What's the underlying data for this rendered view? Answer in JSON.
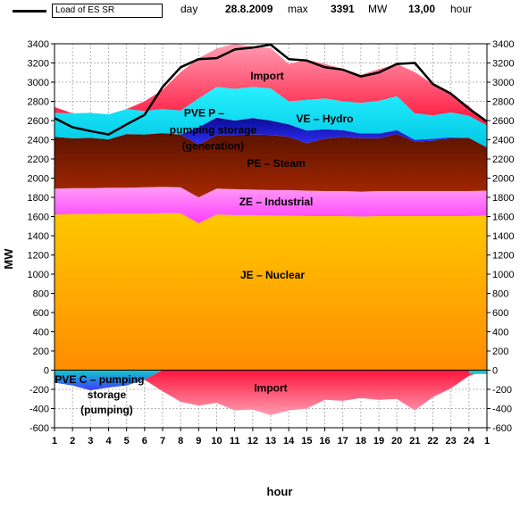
{
  "header": {
    "legend_label": "Load of ES SR",
    "day_label": "day",
    "date": "28.8.2009",
    "max_label": "max",
    "max_value": "3391",
    "unit": "MW",
    "time_value": "13,00",
    "time_label": "hour"
  },
  "chart_data": {
    "type": "area",
    "stacked": true,
    "xlabel": "hour",
    "ylabel": "MW",
    "ylim": [
      -600,
      3400
    ],
    "yticks": [
      -600,
      -400,
      -200,
      0,
      200,
      400,
      600,
      800,
      1000,
      1200,
      1400,
      1600,
      1800,
      2000,
      2200,
      2400,
      2600,
      2800,
      3000,
      3200,
      3400
    ],
    "ytick_labels": [
      "-600",
      "-400",
      "-200",
      "0",
      "200",
      "400",
      "600",
      "800",
      "1000",
      "1200",
      "1400",
      "1600",
      "1800",
      "2000",
      "2200",
      "2400",
      "2600",
      "2800",
      "3000",
      "3200",
      "3400"
    ],
    "x_tick_labels": [
      "1",
      "2",
      "3",
      "4",
      "5",
      "6",
      "7",
      "8",
      "9",
      "10",
      "11",
      "12",
      "13",
      "14",
      "15",
      "16",
      "17",
      "18",
      "19",
      "20",
      "21",
      "22",
      "23",
      "24",
      "1"
    ],
    "grid": true,
    "series": [
      {
        "name": "JE – Nuclear",
        "color": "#ffb400",
        "values": [
          1620,
          1625,
          1625,
          1630,
          1630,
          1630,
          1635,
          1635,
          1530,
          1620,
          1615,
          1615,
          1610,
          1610,
          1605,
          1605,
          1605,
          1600,
          1605,
          1605,
          1605,
          1605,
          1605,
          1605,
          1610
        ]
      },
      {
        "name": "ZE – Industrial",
        "color": "#ff66ff",
        "values": [
          270,
          270,
          270,
          270,
          270,
          275,
          275,
          270,
          270,
          270,
          270,
          265,
          265,
          265,
          265,
          260,
          260,
          260,
          260,
          260,
          260,
          260,
          260,
          260,
          260
        ]
      },
      {
        "name": "PE – Steam",
        "color": "#8b1a00",
        "values": [
          540,
          520,
          525,
          505,
          560,
          550,
          560,
          550,
          550,
          560,
          565,
          575,
          575,
          555,
          495,
          545,
          565,
          555,
          550,
          595,
          515,
          525,
          550,
          555,
          450
        ]
      },
      {
        "name": "PVE P – pumping storage (generation)",
        "color": "#1414c8",
        "values": [
          0,
          0,
          0,
          0,
          0,
          0,
          0,
          0,
          180,
          180,
          150,
          170,
          150,
          130,
          130,
          100,
          70,
          50,
          50,
          40,
          20,
          20,
          10,
          0,
          0
        ]
      },
      {
        "name": "VE – Hydro",
        "color": "#00e5ff",
        "values": [
          250,
          260,
          260,
          260,
          260,
          245,
          250,
          250,
          300,
          320,
          330,
          325,
          335,
          240,
          320,
          320,
          300,
          320,
          340,
          355,
          275,
          245,
          260,
          230,
          230
        ]
      },
      {
        "name": "Import",
        "color": "#ff3c5a",
        "values": [
          60,
          0,
          0,
          0,
          0,
          100,
          200,
          400,
          420,
          400,
          470,
          420,
          420,
          390,
          420,
          360,
          340,
          290,
          330,
          335,
          430,
          325,
          190,
          100,
          20
        ]
      }
    ],
    "negative_series": [
      {
        "name": "PVE C – pumping storage (pumping)",
        "color": "#1e46ff",
        "values": [
          -130,
          -160,
          -210,
          -180,
          -160,
          -100,
          0,
          0,
          0,
          0,
          0,
          0,
          0,
          0,
          0,
          0,
          0,
          0,
          0,
          0,
          0,
          0,
          0,
          0,
          0
        ]
      },
      {
        "name": "Import",
        "color": "#ff3c5a",
        "values": [
          0,
          0,
          0,
          0,
          0,
          0,
          -220,
          -330,
          -370,
          -340,
          -420,
          -410,
          -470,
          -420,
          -400,
          -310,
          -320,
          -290,
          -310,
          -300,
          -420,
          -280,
          -190,
          -60,
          0
        ]
      }
    ],
    "line_series": {
      "name": "Load of ES SR",
      "color": "#000000",
      "values": [
        2625,
        2530,
        2490,
        2455,
        2560,
        2660,
        2950,
        3155,
        3240,
        3250,
        3340,
        3360,
        3391,
        3240,
        3225,
        3155,
        3130,
        3060,
        3100,
        3190,
        3200,
        2980,
        2880,
        2725,
        2590
      ]
    },
    "annotations": [
      {
        "text": "Import",
        "x": 12.8,
        "y": 3030
      },
      {
        "text": "PVE P –",
        "x": 9.3,
        "y": 2640
      },
      {
        "text": "pumping storage",
        "x": 9.8,
        "y": 2465
      },
      {
        "text": "(generation)",
        "x": 9.8,
        "y": 2300
      },
      {
        "text": "VE – Hydro",
        "x": 16,
        "y": 2580
      },
      {
        "text": "PE – Steam",
        "x": 13.3,
        "y": 2115
      },
      {
        "text": "ZE – Industrial",
        "x": 13.3,
        "y": 1715
      },
      {
        "text": "JE – Nuclear",
        "x": 13.1,
        "y": 955
      },
      {
        "text": "Import",
        "x": 13,
        "y": -225
      },
      {
        "text": "PVE C – pumping",
        "x": 3.5,
        "y": -135
      },
      {
        "text": "storage",
        "x": 3.9,
        "y": -295
      },
      {
        "text": "(pumping)",
        "x": 3.9,
        "y": -450
      }
    ]
  }
}
